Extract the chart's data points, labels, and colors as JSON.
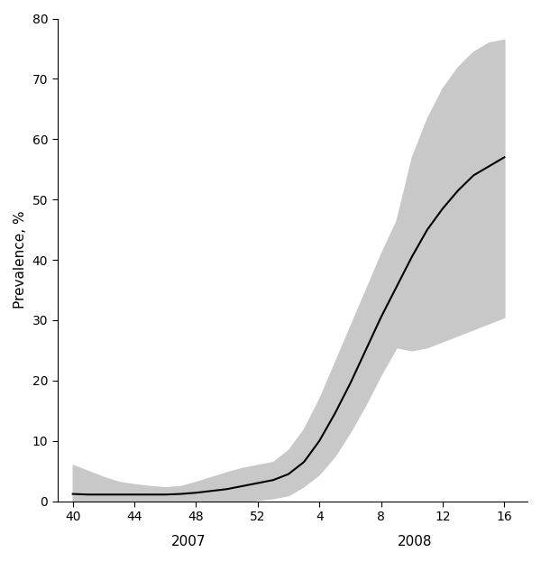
{
  "ylabel": "Prevalence, %",
  "ylim": [
    0,
    80
  ],
  "yticks": [
    0,
    10,
    20,
    30,
    40,
    50,
    60,
    70,
    80
  ],
  "ci_color": "#c8c8c8",
  "line_color": "#000000",
  "line_width": 1.5,
  "bg_color": "#ffffff",
  "x_tick_labels": [
    "40",
    "44",
    "48",
    "52",
    "4",
    "8",
    "12",
    "16"
  ],
  "x_tick_positions": [
    40,
    44,
    48,
    52,
    56,
    60,
    64,
    68
  ],
  "xlim": [
    39.0,
    69.5
  ],
  "mean_x": [
    40,
    41,
    42,
    43,
    44,
    45,
    46,
    47,
    48,
    49,
    50,
    51,
    52,
    53,
    54,
    55,
    56,
    57,
    58,
    59,
    60,
    61,
    62,
    63,
    64,
    65,
    66,
    67,
    68
  ],
  "mean_y": [
    1.2,
    1.1,
    1.1,
    1.1,
    1.1,
    1.1,
    1.1,
    1.2,
    1.4,
    1.7,
    2.0,
    2.5,
    3.0,
    3.5,
    4.5,
    6.5,
    10.0,
    14.5,
    19.5,
    25.0,
    30.5,
    35.5,
    40.5,
    45.0,
    48.5,
    51.5,
    54.0,
    55.5,
    57.0
  ],
  "lower_y": [
    0.0,
    0.0,
    0.0,
    0.0,
    0.0,
    0.0,
    0.0,
    0.0,
    0.0,
    0.0,
    0.0,
    0.0,
    0.2,
    0.5,
    1.0,
    2.5,
    4.5,
    7.5,
    11.5,
    16.0,
    21.0,
    25.5,
    25.0,
    25.5,
    26.5,
    27.5,
    28.5,
    29.5,
    30.5
  ],
  "upper_y": [
    6.0,
    5.0,
    4.0,
    3.2,
    2.8,
    2.5,
    2.3,
    2.5,
    3.2,
    4.0,
    4.8,
    5.5,
    6.0,
    6.5,
    8.5,
    12.0,
    17.0,
    23.0,
    29.0,
    35.0,
    41.0,
    46.5,
    57.0,
    63.5,
    68.5,
    72.0,
    74.5,
    76.0,
    76.5
  ],
  "year2007_x": 46,
  "year2008_x": 62,
  "year_fontsize": 11,
  "tick_fontsize": 10,
  "ylabel_fontsize": 11
}
